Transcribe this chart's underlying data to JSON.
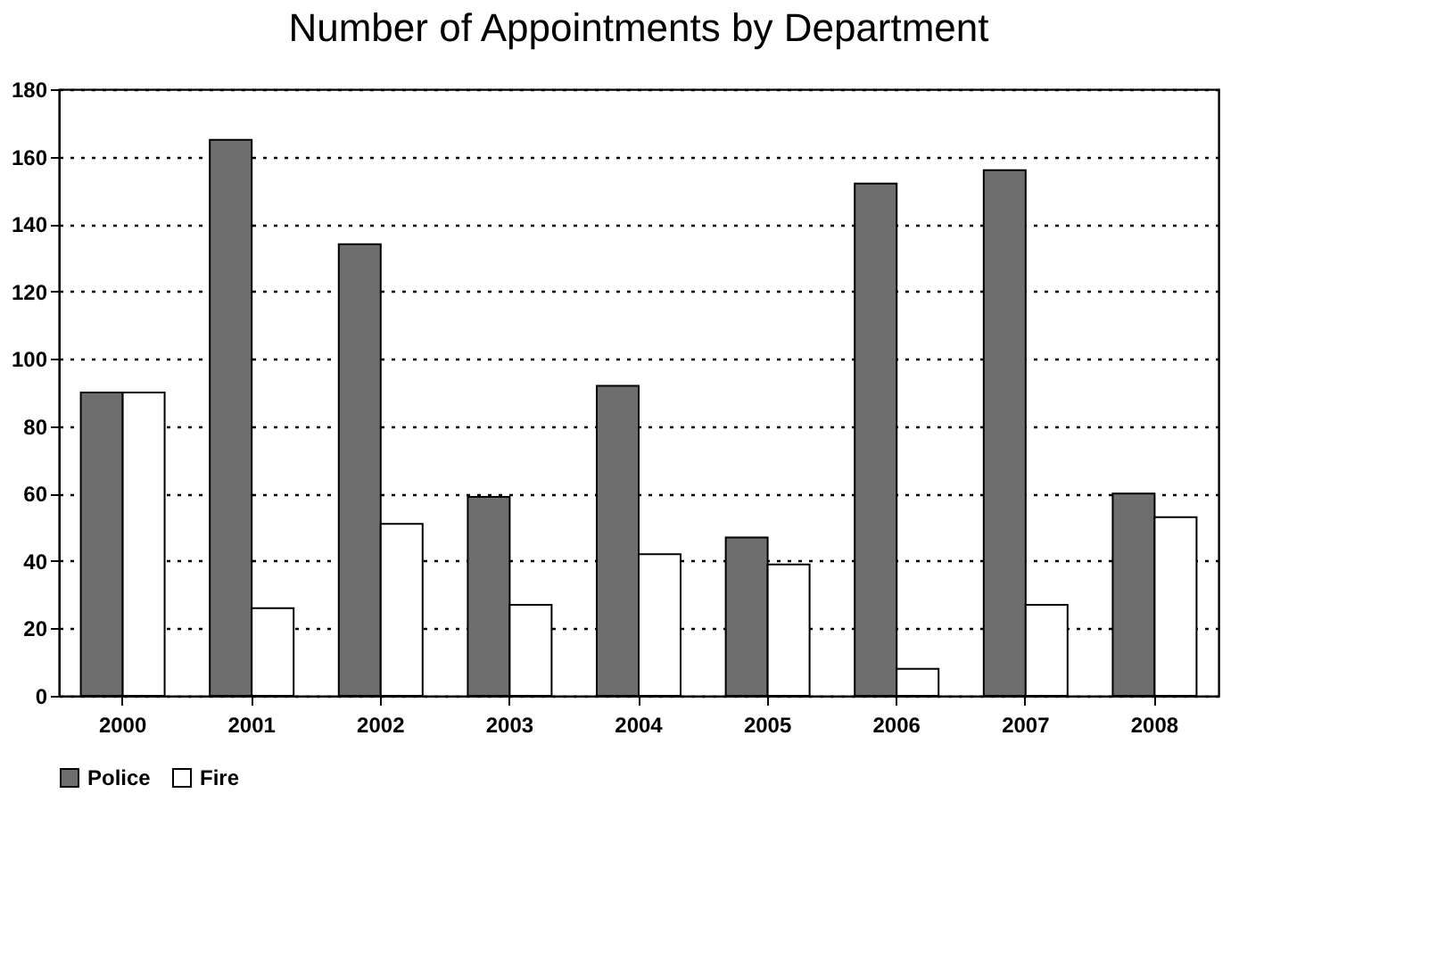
{
  "chart_data": {
    "type": "bar",
    "title": "Number of Appointments by Department",
    "categories": [
      "2000",
      "2001",
      "2002",
      "2003",
      "2004",
      "2005",
      "2006",
      "2007",
      "2008"
    ],
    "series": [
      {
        "name": "Police",
        "color": "#6e6e6e",
        "values": [
          90,
          165,
          134,
          59,
          92,
          47,
          152,
          156,
          60
        ]
      },
      {
        "name": "Fire",
        "color": "#ffffff",
        "values": [
          90,
          26,
          51,
          27,
          42,
          39,
          8,
          27,
          53
        ]
      }
    ],
    "ylim": [
      0,
      180
    ],
    "yticks": [
      0,
      20,
      40,
      60,
      80,
      100,
      120,
      140,
      160,
      180
    ],
    "grid": "y",
    "legend": "bottom"
  }
}
